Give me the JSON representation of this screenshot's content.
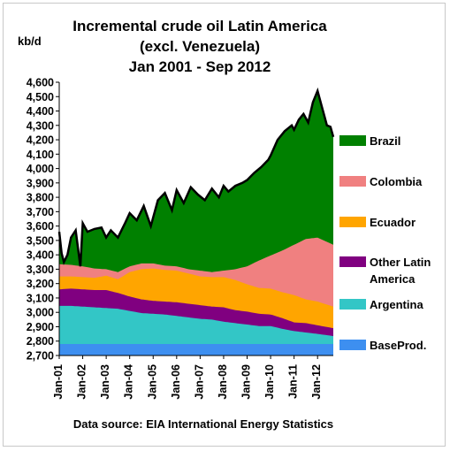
{
  "chart_data": {
    "type": "area",
    "stacked": true,
    "title": [
      "Incremental crude oil Latin America",
      "(excl. Venezuela)",
      "Jan 2001 - Sep 2012"
    ],
    "unit_label": "kb/d",
    "source": "Data source: EIA International Energy Statistics",
    "ylim": [
      2700,
      4600
    ],
    "y_ticks": [
      "2,700",
      "2,800",
      "2,900",
      "3,000",
      "3,100",
      "3,200",
      "3,300",
      "3,400",
      "3,500",
      "3,600",
      "3,700",
      "3,800",
      "3,900",
      "4,000",
      "4,100",
      "4,200",
      "4,300",
      "4,400",
      "4,500",
      "4,600"
    ],
    "y_tick_values": [
      2700,
      2800,
      2900,
      3000,
      3100,
      3200,
      3300,
      3400,
      3500,
      3600,
      3700,
      3800,
      3900,
      4000,
      4100,
      4200,
      4300,
      4400,
      4500,
      4600
    ],
    "x_ticks": [
      "Jan-01",
      "Jan-02",
      "Jan-03",
      "Jan-04",
      "Jan-05",
      "Jan-06",
      "Jan-07",
      "Jan-08",
      "Jan-09",
      "Jan-10",
      "Jan-11",
      "Jan-12"
    ],
    "x_tick_values": [
      2001,
      2002,
      2003,
      2004,
      2005,
      2006,
      2007,
      2008,
      2009,
      2010,
      2011,
      2012
    ],
    "x_range": [
      2001.0,
      2012.67
    ],
    "legend_position": "right",
    "series": [
      {
        "name": "BaseProd.",
        "color": "#3d8ff0",
        "x": [
          2001.0,
          2012.67
        ],
        "values": [
          2780,
          2780
        ]
      },
      {
        "name": "Argentina",
        "color": "#33c6c6",
        "x": [
          2001.0,
          2001.5,
          2002.0,
          2002.5,
          2003.0,
          2003.5,
          2004.0,
          2004.5,
          2005.0,
          2005.5,
          2006.0,
          2006.5,
          2007.0,
          2007.5,
          2008.0,
          2008.5,
          2009.0,
          2009.5,
          2010.0,
          2010.5,
          2011.0,
          2011.5,
          2012.0,
          2012.67
        ],
        "values": [
          3045,
          3045,
          3040,
          3035,
          3030,
          3025,
          3010,
          2995,
          2990,
          2985,
          2975,
          2965,
          2955,
          2950,
          2935,
          2925,
          2915,
          2905,
          2905,
          2885,
          2870,
          2860,
          2850,
          2835
        ]
      },
      {
        "name": "Other Latin America",
        "color": "#800080",
        "x": [
          2001.0,
          2001.5,
          2002.0,
          2002.5,
          2003.0,
          2003.5,
          2004.0,
          2004.5,
          2005.0,
          2005.5,
          2006.0,
          2006.5,
          2007.0,
          2007.5,
          2008.0,
          2008.5,
          2009.0,
          2009.5,
          2010.0,
          2010.5,
          2011.0,
          2011.5,
          2012.0,
          2012.67
        ],
        "values": [
          3160,
          3165,
          3160,
          3155,
          3155,
          3135,
          3110,
          3090,
          3080,
          3075,
          3070,
          3060,
          3050,
          3040,
          3035,
          3015,
          3005,
          2990,
          2985,
          2960,
          2930,
          2925,
          2910,
          2890
        ]
      },
      {
        "name": "Ecuador",
        "color": "#ffa500",
        "x": [
          2001.0,
          2001.5,
          2002.0,
          2002.5,
          2003.0,
          2003.5,
          2004.0,
          2004.5,
          2005.0,
          2005.5,
          2006.0,
          2006.5,
          2007.0,
          2007.5,
          2008.0,
          2008.5,
          2009.0,
          2009.5,
          2010.0,
          2010.5,
          2011.0,
          2011.5,
          2012.0,
          2012.67
        ],
        "values": [
          3250,
          3250,
          3245,
          3240,
          3255,
          3230,
          3280,
          3300,
          3305,
          3295,
          3290,
          3270,
          3250,
          3245,
          3245,
          3225,
          3195,
          3170,
          3165,
          3140,
          3120,
          3090,
          3075,
          3040
        ]
      },
      {
        "name": "Colombia",
        "color": "#f08080",
        "x": [
          2001.0,
          2001.5,
          2002.0,
          2002.5,
          2003.0,
          2003.5,
          2004.0,
          2004.5,
          2005.0,
          2005.5,
          2006.0,
          2006.5,
          2007.0,
          2007.5,
          2008.0,
          2008.5,
          2009.0,
          2009.5,
          2010.0,
          2010.5,
          2011.0,
          2011.5,
          2012.0,
          2012.67
        ],
        "values": [
          3335,
          3330,
          3320,
          3305,
          3300,
          3280,
          3320,
          3340,
          3340,
          3325,
          3320,
          3300,
          3290,
          3280,
          3290,
          3300,
          3320,
          3360,
          3395,
          3430,
          3470,
          3510,
          3520,
          3470
        ]
      },
      {
        "name": "Brazil",
        "color": "#008000",
        "x": [
          2001.0,
          2001.1,
          2001.2,
          2001.35,
          2001.5,
          2001.7,
          2001.9,
          2002.0,
          2002.2,
          2002.5,
          2002.8,
          2003.0,
          2003.2,
          2003.5,
          2003.8,
          2004.0,
          2004.3,
          2004.6,
          2004.9,
          2005.2,
          2005.5,
          2005.8,
          2006.0,
          2006.3,
          2006.6,
          2006.9,
          2007.2,
          2007.5,
          2007.8,
          2008.0,
          2008.2,
          2008.5,
          2008.8,
          2009.0,
          2009.3,
          2009.6,
          2009.9,
          2010.0,
          2010.3,
          2010.6,
          2010.9,
          2011.0,
          2011.2,
          2011.4,
          2011.6,
          2011.8,
          2012.0,
          2012.2,
          2012.4,
          2012.55,
          2012.67
        ],
        "values": [
          3560,
          3410,
          3350,
          3400,
          3520,
          3570,
          3320,
          3620,
          3560,
          3580,
          3590,
          3520,
          3570,
          3520,
          3620,
          3690,
          3640,
          3740,
          3600,
          3780,
          3830,
          3710,
          3850,
          3760,
          3870,
          3820,
          3780,
          3860,
          3800,
          3880,
          3840,
          3880,
          3900,
          3920,
          3970,
          4010,
          4060,
          4090,
          4200,
          4260,
          4300,
          4270,
          4340,
          4380,
          4320,
          4460,
          4540,
          4420,
          4300,
          4290,
          4220
        ]
      }
    ],
    "total_outline": true
  }
}
